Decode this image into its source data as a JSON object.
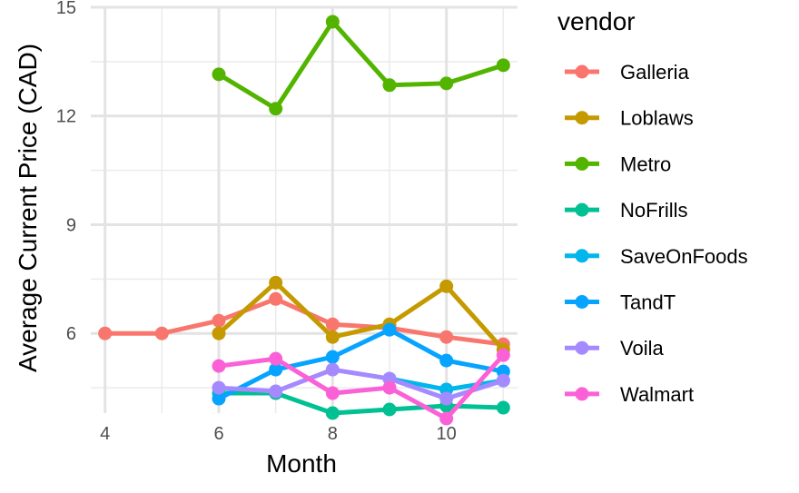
{
  "chart_data": {
    "type": "line",
    "xlabel": "Month",
    "ylabel": "Average Current Price (CAD)",
    "xlim": [
      3.75,
      11.25
    ],
    "ylim": [
      3.8,
      15.0
    ],
    "x_ticks": [
      4,
      6,
      8,
      10
    ],
    "y_ticks": [
      6,
      9,
      12,
      15
    ],
    "grid": true,
    "legend": {
      "title": "vendor",
      "position": "right"
    },
    "series": [
      {
        "name": "Galleria",
        "color": "#F8766D",
        "x": [
          4,
          5,
          6,
          7,
          8,
          9,
          10,
          11
        ],
        "y": [
          6.0,
          6.0,
          6.35,
          6.95,
          6.25,
          6.15,
          5.9,
          5.7
        ]
      },
      {
        "name": "Loblaws",
        "color": "#C49A00",
        "x": [
          6,
          7,
          8,
          9,
          10,
          11
        ],
        "y": [
          6.0,
          7.4,
          5.9,
          6.25,
          7.3,
          5.55
        ]
      },
      {
        "name": "Metro",
        "color": "#53B400",
        "x": [
          6,
          7,
          8,
          9,
          10,
          11
        ],
        "y": [
          13.15,
          12.2,
          14.6,
          12.85,
          12.9,
          13.4
        ]
      },
      {
        "name": "NoFrills",
        "color": "#00C094",
        "x": [
          6,
          7,
          8,
          9,
          10,
          11
        ],
        "y": [
          4.35,
          4.35,
          3.8,
          3.9,
          4.0,
          3.95
        ]
      },
      {
        "name": "SaveOnFoods",
        "color": "#00B6EB",
        "x": [
          9,
          10,
          11
        ],
        "y": [
          4.75,
          4.45,
          4.7
        ]
      },
      {
        "name": "TandT",
        "color": "#06A4FF",
        "x": [
          6,
          7,
          8,
          9,
          10,
          11
        ],
        "y": [
          4.2,
          5.0,
          5.35,
          6.1,
          5.25,
          4.95
        ]
      },
      {
        "name": "Voila",
        "color": "#A58AFF",
        "x": [
          6,
          7,
          8,
          9,
          10,
          11
        ],
        "y": [
          4.5,
          4.4,
          5.0,
          4.75,
          4.2,
          4.7
        ]
      },
      {
        "name": "Walmart",
        "color": "#FB61D7",
        "x": [
          6,
          7,
          8,
          9,
          10,
          11
        ],
        "y": [
          5.1,
          5.3,
          4.35,
          4.5,
          3.65,
          5.4
        ]
      }
    ]
  }
}
